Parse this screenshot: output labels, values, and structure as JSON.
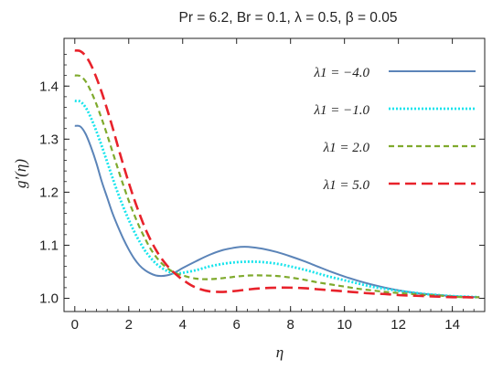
{
  "chart_data": {
    "type": "line",
    "title": "Pr = 6.2, Br = 0.1, λ = 0.5, β = 0.05",
    "xlabel": "η",
    "ylabel": "g′(η)",
    "xlim": [
      -0.4,
      15.2
    ],
    "ylim": [
      0.975,
      1.49
    ],
    "xticks": [
      0,
      2,
      4,
      6,
      8,
      10,
      12,
      14
    ],
    "xtick_labels": [
      "0",
      "2",
      "4",
      "6",
      "8",
      "10",
      "12",
      "14"
    ],
    "yticks": [
      1.0,
      1.1,
      1.2,
      1.3,
      1.4
    ],
    "ytick_labels": [
      "1.0",
      "1.1",
      "1.2",
      "1.3",
      "1.4"
    ],
    "grid": false,
    "legend_position": "top-right",
    "series": [
      {
        "name": "λ1 = −4.0",
        "color": "#5b84b8",
        "dash": "solid",
        "x": [
          0,
          0.2,
          0.4,
          0.6,
          0.8,
          1.0,
          1.2,
          1.4,
          1.6,
          1.8,
          2.0,
          2.2,
          2.4,
          2.6,
          2.8,
          3.0,
          3.2,
          3.4,
          3.6,
          3.8,
          4.0,
          4.5,
          5.0,
          5.5,
          6.0,
          6.3,
          6.6,
          7.0,
          7.5,
          8.0,
          8.5,
          9.0,
          9.5,
          10,
          10.5,
          11,
          11.5,
          12,
          12.5,
          13,
          13.5,
          14,
          14.5,
          15
        ],
        "y": [
          1.325,
          1.324,
          1.31,
          1.285,
          1.255,
          1.22,
          1.19,
          1.16,
          1.135,
          1.112,
          1.092,
          1.075,
          1.062,
          1.053,
          1.047,
          1.043,
          1.042,
          1.043,
          1.046,
          1.051,
          1.057,
          1.07,
          1.082,
          1.091,
          1.096,
          1.097,
          1.096,
          1.093,
          1.087,
          1.079,
          1.07,
          1.06,
          1.05,
          1.041,
          1.033,
          1.026,
          1.02,
          1.015,
          1.011,
          1.008,
          1.006,
          1.004,
          1.003,
          1.002
        ]
      },
      {
        "name": "λ1 = −1.0",
        "color": "#18e4ec",
        "dash": "dotted",
        "x": [
          0,
          0.2,
          0.4,
          0.6,
          0.8,
          1.0,
          1.2,
          1.4,
          1.6,
          1.8,
          2.0,
          2.2,
          2.4,
          2.6,
          2.8,
          3.0,
          3.2,
          3.4,
          3.6,
          3.8,
          4.0,
          4.5,
          5.0,
          5.5,
          6.0,
          6.5,
          7.0,
          7.5,
          8.0,
          8.5,
          9.0,
          9.5,
          10,
          10.5,
          11,
          11.5,
          12,
          12.5,
          13,
          13.5,
          14,
          14.5,
          15
        ],
        "y": [
          1.372,
          1.371,
          1.36,
          1.34,
          1.315,
          1.287,
          1.257,
          1.227,
          1.198,
          1.172,
          1.148,
          1.126,
          1.107,
          1.09,
          1.077,
          1.066,
          1.058,
          1.052,
          1.048,
          1.047,
          1.048,
          1.053,
          1.06,
          1.065,
          1.068,
          1.069,
          1.068,
          1.065,
          1.06,
          1.054,
          1.047,
          1.04,
          1.034,
          1.028,
          1.022,
          1.018,
          1.014,
          1.011,
          1.008,
          1.006,
          1.004,
          1.003,
          1.002
        ]
      },
      {
        "name": "λ1 = 2.0",
        "color": "#7faa2d",
        "dash": "dashed",
        "x": [
          0,
          0.2,
          0.4,
          0.6,
          0.8,
          1.0,
          1.2,
          1.4,
          1.6,
          1.8,
          2.0,
          2.2,
          2.4,
          2.6,
          2.8,
          3.0,
          3.2,
          3.4,
          3.6,
          3.8,
          4.0,
          4.5,
          5.0,
          5.5,
          6.0,
          6.5,
          7.0,
          7.5,
          8.0,
          8.5,
          9.0,
          9.5,
          10,
          10.5,
          11,
          11.5,
          12,
          12.5,
          13,
          13.5,
          14,
          14.5,
          15
        ],
        "y": [
          1.42,
          1.419,
          1.409,
          1.39,
          1.366,
          1.338,
          1.308,
          1.276,
          1.244,
          1.213,
          1.184,
          1.158,
          1.134,
          1.113,
          1.094,
          1.079,
          1.067,
          1.058,
          1.051,
          1.046,
          1.043,
          1.037,
          1.036,
          1.038,
          1.041,
          1.043,
          1.043,
          1.042,
          1.039,
          1.035,
          1.03,
          1.026,
          1.022,
          1.018,
          1.015,
          1.012,
          1.01,
          1.008,
          1.006,
          1.005,
          1.003,
          1.002,
          1.002
        ]
      },
      {
        "name": "λ1 = 5.0",
        "color": "#e8222b",
        "dash": "longdash",
        "x": [
          0,
          0.2,
          0.4,
          0.6,
          0.8,
          1.0,
          1.2,
          1.4,
          1.6,
          1.8,
          2.0,
          2.2,
          2.4,
          2.6,
          2.8,
          3.0,
          3.2,
          3.4,
          3.6,
          3.8,
          4.0,
          4.3,
          4.6,
          5.0,
          5.5,
          6.0,
          6.5,
          7.0,
          7.5,
          8.0,
          8.5,
          9.0,
          9.5,
          10,
          10.5,
          11,
          11.5,
          12,
          12.5,
          13,
          13.5,
          14,
          14.5,
          15
        ],
        "y": [
          1.467,
          1.466,
          1.457,
          1.44,
          1.416,
          1.388,
          1.356,
          1.322,
          1.286,
          1.251,
          1.218,
          1.187,
          1.159,
          1.133,
          1.111,
          1.092,
          1.076,
          1.063,
          1.052,
          1.043,
          1.035,
          1.025,
          1.018,
          1.013,
          1.012,
          1.014,
          1.017,
          1.019,
          1.02,
          1.02,
          1.019,
          1.017,
          1.015,
          1.013,
          1.011,
          1.009,
          1.008,
          1.006,
          1.005,
          1.004,
          1.003,
          1.002,
          1.002,
          1.001
        ]
      }
    ]
  },
  "colors": {
    "axis": "#222222",
    "background": "#ffffff"
  }
}
